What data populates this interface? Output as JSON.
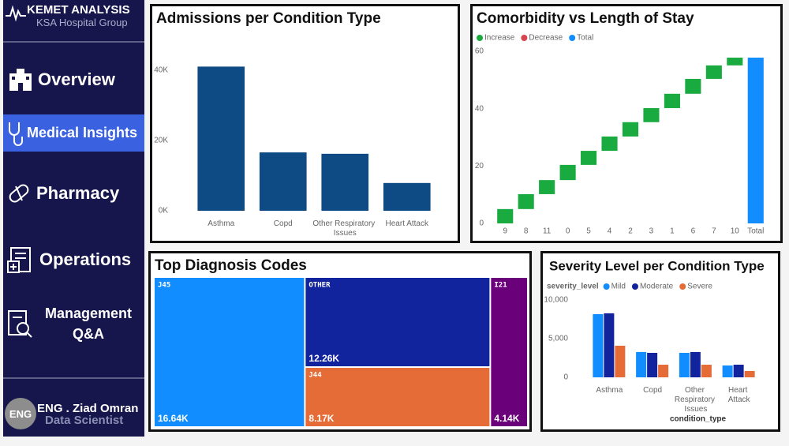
{
  "sidebar": {
    "brand": "KEMET ANALYSIS",
    "subtitle": "KSA Hospital Group",
    "nav": [
      "Overview",
      "Medical Insights",
      "Pharmacy",
      "Operations",
      "Management Q&A"
    ],
    "profile": {
      "initials": "ENG",
      "name": "ENG . Ziad Omran",
      "role": "Data Scientist"
    }
  },
  "chart_data": [
    {
      "type": "bar",
      "title": "Admissions per Condition Type",
      "categories": [
        "Asthma",
        "Copd",
        "Other Respiratory Issues",
        "Heart Attack"
      ],
      "values": [
        41000,
        16600,
        16200,
        7900
      ],
      "color": "#0e4a84",
      "ylim": [
        0,
        44000
      ],
      "yticks": [
        {
          "value": 0,
          "label": "0K"
        },
        {
          "value": 20000,
          "label": "20K"
        },
        {
          "value": 40000,
          "label": "40K"
        }
      ]
    },
    {
      "type": "waterfall",
      "title": "Comorbidity vs Length of Stay",
      "legend": [
        {
          "name": "Increase",
          "color": "#1aab40"
        },
        {
          "name": "Decrease",
          "color": "#d64550"
        },
        {
          "name": "Total",
          "color": "#118dff"
        }
      ],
      "categories": [
        "9",
        "8",
        "11",
        "0",
        "5",
        "4",
        "2",
        "3",
        "1",
        "6",
        "7",
        "10"
      ],
      "values": [
        5.0,
        5.2,
        4.9,
        5.3,
        4.9,
        5.0,
        5.0,
        4.9,
        5.0,
        5.2,
        4.7,
        2.7
      ],
      "total": {
        "label": "Total",
        "value": 57.8
      },
      "ylim": [
        0,
        61
      ],
      "yticks": [
        0,
        20,
        40,
        60
      ]
    },
    {
      "type": "treemap",
      "title": "Top Diagnosis Codes",
      "items": [
        {
          "name": "J45",
          "value": 16640,
          "value_label": "16.64K",
          "color": "#118dff"
        },
        {
          "name": "OTHER",
          "value": 12260,
          "value_label": "12.26K",
          "color": "#12239e"
        },
        {
          "name": "J44",
          "value": 8170,
          "value_label": "8.17K",
          "color": "#e66c37"
        },
        {
          "name": "I21",
          "value": 4140,
          "value_label": "4.14K",
          "color": "#6b007b"
        }
      ]
    },
    {
      "type": "grouped_bar",
      "title": "Severity Level per Condition Type",
      "legend_title": "severity_level",
      "categories": [
        "Asthma",
        "Copd",
        "Other Respiratory Issues",
        "Heart Attack"
      ],
      "series": [
        {
          "name": "Mild",
          "color": "#118dff",
          "values": [
            8160,
            3270,
            3160,
            1530
          ]
        },
        {
          "name": "Moderate",
          "color": "#12239e",
          "values": [
            8270,
            3160,
            3270,
            1630
          ]
        },
        {
          "name": "Severe",
          "color": "#e66c37",
          "values": [
            4080,
            1630,
            1630,
            820
          ]
        }
      ],
      "xlabel": "condition_type",
      "ylim": [
        0,
        10500
      ],
      "yticks": [
        0,
        {
          "value": 5000,
          "label": "5,000"
        },
        {
          "value": 10000,
          "label": "10,000"
        }
      ]
    }
  ]
}
